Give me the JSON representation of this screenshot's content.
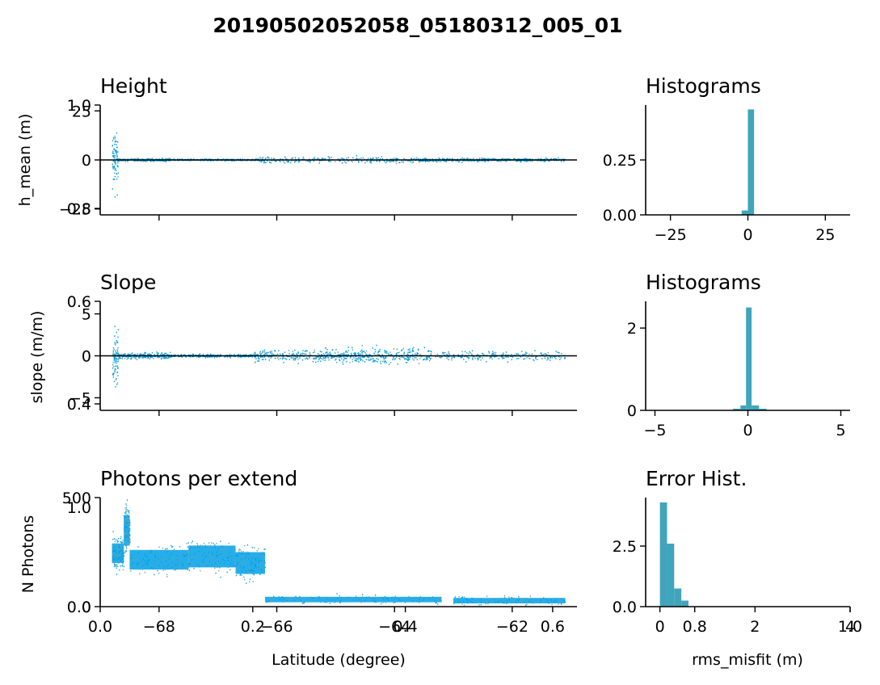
{
  "suptitle": "20190502052058_05180312_005_01",
  "colors": {
    "scatter": "#00a0e8",
    "scatter_speckle": "#5aa6b3",
    "hist": "#40a5bb",
    "axis": "#000000"
  },
  "chart_data": [
    {
      "type": "scatter",
      "id": "height",
      "title": "Height",
      "xlabel": "",
      "ylabel": "h_mean (m)",
      "xlim": [
        -69,
        -60.9
      ],
      "ylim": [
        -28,
        28
      ],
      "yticks": [
        {
          "v": 25,
          "label": "25"
        },
        {
          "v": 0,
          "label": "0"
        },
        {
          "v": -25,
          "label": "−25"
        }
      ],
      "overlay_yticks": [
        "1.0",
        "0.8"
      ],
      "zero_line": true,
      "x_segments": [
        {
          "x0": -68.8,
          "x1": -68.7,
          "y_spread": 26
        },
        {
          "x0": -68.7,
          "x1": -67.8,
          "y_spread": 1.2
        },
        {
          "x0": -67.8,
          "x1": -66.3,
          "y_spread": 0.8
        },
        {
          "x0": -66.3,
          "x1": -63.6,
          "y_spread": 2.5
        },
        {
          "x0": -63.6,
          "x1": -62.4,
          "y_spread": 1.5
        },
        {
          "x0": -62.4,
          "x1": -61.1,
          "y_spread": 1.2
        }
      ]
    },
    {
      "type": "bar",
      "id": "height-hist",
      "title": "Histograms",
      "xlim": [
        -33,
        33
      ],
      "ylim": [
        0,
        0.5
      ],
      "xticks": [
        {
          "v": -25,
          "label": "−25"
        },
        {
          "v": 0,
          "label": "0"
        },
        {
          "v": 25,
          "label": "25"
        }
      ],
      "yticks": [
        {
          "v": 0,
          "label": "0.00"
        },
        {
          "v": 0.25,
          "label": "0.25"
        }
      ],
      "bins": [
        {
          "x0": -2,
          "x1": 0,
          "value": 0.02
        },
        {
          "x0": 0,
          "x1": 2,
          "value": 0.48
        }
      ]
    },
    {
      "type": "scatter",
      "id": "slope",
      "title": "Slope",
      "xlabel": "",
      "ylabel": "slope (m/m)",
      "xlim": [
        -69,
        -60.9
      ],
      "ylim": [
        -6.5,
        6.5
      ],
      "yticks": [
        {
          "v": 5,
          "label": "5"
        },
        {
          "v": 0,
          "label": "0"
        },
        {
          "v": -5,
          "label": "−5"
        }
      ],
      "overlay_yticks": [
        "0.6",
        "0.4"
      ],
      "zero_line": true,
      "x_segments": [
        {
          "x0": -68.8,
          "x1": -68.7,
          "y_spread": 6
        },
        {
          "x0": -68.7,
          "x1": -67.8,
          "y_spread": 0.6
        },
        {
          "x0": -67.8,
          "x1": -66.4,
          "y_spread": 0.3
        },
        {
          "x0": -66.4,
          "x1": -64.9,
          "y_spread": 1.2
        },
        {
          "x0": -64.9,
          "x1": -63.5,
          "y_spread": 1.6
        },
        {
          "x0": -63.5,
          "x1": -61.1,
          "y_spread": 1.0
        }
      ]
    },
    {
      "type": "bar",
      "id": "slope-hist",
      "title": "Histograms",
      "xlim": [
        -5.5,
        5.5
      ],
      "ylim": [
        0,
        2.65
      ],
      "xticks": [
        {
          "v": -5,
          "label": "−5"
        },
        {
          "v": 0,
          "label": "0"
        },
        {
          "v": 5,
          "label": "5"
        }
      ],
      "yticks": [
        {
          "v": 0,
          "label": "0"
        },
        {
          "v": 2,
          "label": "2"
        }
      ],
      "bins": [
        {
          "x0": -1.2,
          "x1": -0.8,
          "value": 0.01
        },
        {
          "x0": -0.8,
          "x1": -0.4,
          "value": 0.04
        },
        {
          "x0": -0.4,
          "x1": -0.1,
          "value": 0.12
        },
        {
          "x0": -0.1,
          "x1": 0.2,
          "value": 2.5
        },
        {
          "x0": 0.2,
          "x1": 0.6,
          "value": 0.12
        },
        {
          "x0": 0.6,
          "x1": 1.0,
          "value": 0.04
        }
      ]
    },
    {
      "type": "scatter",
      "id": "photons",
      "title": "Photons per extend",
      "xlabel": "Latitude (degree)",
      "ylabel": "N Photons",
      "xlim": [
        -69,
        -60.9
      ],
      "ylim": [
        0,
        500
      ],
      "yticks": [
        {
          "v": 500,
          "label": "500"
        },
        {
          "v": 0,
          "label": "0"
        }
      ],
      "overlay_yticks": [
        "1.0",
        "0.0"
      ],
      "xticks": [
        {
          "v": -68,
          "label": "−68"
        },
        {
          "v": -66,
          "label": "−66"
        },
        {
          "v": -64,
          "label": "−64"
        },
        {
          "v": -62,
          "label": "−62"
        }
      ],
      "overlay_xticks": [
        "0.0",
        "0.2",
        "0.4",
        "0.6"
      ],
      "x_segments": [
        {
          "x0": -68.8,
          "x1": -68.6,
          "y_low": 200,
          "y_high": 290
        },
        {
          "x0": -68.6,
          "x1": -68.5,
          "y_low": 280,
          "y_high": 420
        },
        {
          "x0": -68.5,
          "x1": -67.5,
          "y_low": 170,
          "y_high": 260
        },
        {
          "x0": -67.5,
          "x1": -66.7,
          "y_low": 180,
          "y_high": 280
        },
        {
          "x0": -66.7,
          "x1": -66.2,
          "y_low": 150,
          "y_high": 250
        },
        {
          "x0": -66.2,
          "x1": -63.2,
          "y_low": 20,
          "y_high": 45
        },
        {
          "x0": -63.0,
          "x1": -61.1,
          "y_low": 15,
          "y_high": 40
        }
      ]
    },
    {
      "type": "bar",
      "id": "error-hist",
      "title": "Error Hist.",
      "xlabel": "rms_misfit (m)",
      "xlim": [
        -0.3,
        4.0
      ],
      "ylim": [
        0,
        4.5
      ],
      "xticks": [
        {
          "v": 0,
          "label": "0"
        },
        {
          "v": 2,
          "label": "2"
        },
        {
          "v": 4,
          "label": "4"
        }
      ],
      "overlay_xticks": [
        "0.8",
        "1.0"
      ],
      "yticks": [
        {
          "v": 0,
          "label": "0.0"
        },
        {
          "v": 2.5,
          "label": "2.5"
        }
      ],
      "bins": [
        {
          "x0": 0,
          "x1": 0.15,
          "value": 4.3
        },
        {
          "x0": 0.15,
          "x1": 0.3,
          "value": 2.6
        },
        {
          "x0": 0.3,
          "x1": 0.45,
          "value": 0.75
        },
        {
          "x0": 0.45,
          "x1": 0.6,
          "value": 0.25
        }
      ]
    }
  ]
}
